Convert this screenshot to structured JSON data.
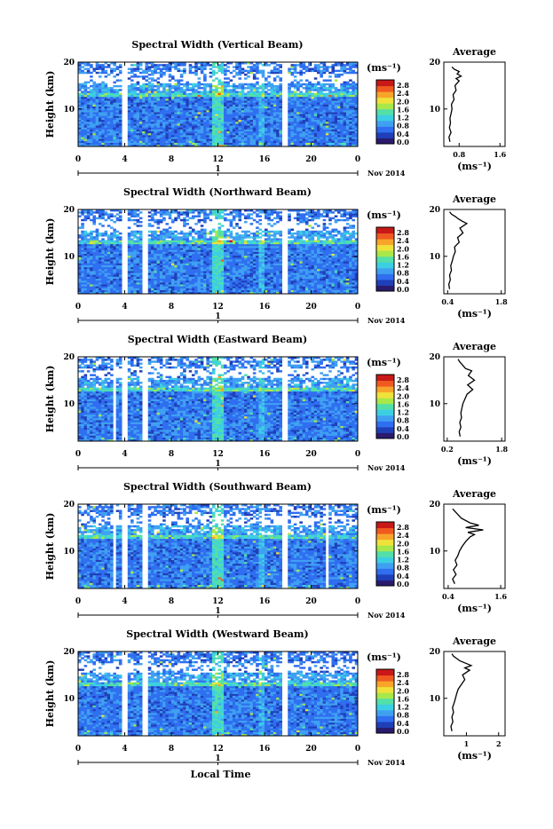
{
  "chart_data": [
    {
      "type": "heatmap",
      "title": "Spectral Width (Vertical Beam)",
      "ylabel": "Height (km)",
      "ylim": [
        2,
        20
      ],
      "yticks": [
        "20",
        "10"
      ],
      "xticks": [
        "0",
        "4",
        "8",
        "12",
        "16",
        "20",
        "0"
      ],
      "day_tick": "1",
      "date_label": "Nov 2014",
      "colorbar": {
        "unit": "(ms⁻¹)",
        "ticks": [
          "2.8",
          "2.4",
          "2.0",
          "1.6",
          "1.2",
          "0.8",
          "0.4",
          "0.0"
        ]
      },
      "average": {
        "title": "Average",
        "xticks": [
          "0.8",
          "1.6"
        ],
        "xlim": [
          0.5,
          1.7
        ],
        "xunit": "(ms⁻¹)",
        "yticks": [
          "20",
          "10"
        ],
        "profile": [
          [
            0.62,
            3
          ],
          [
            0.6,
            4
          ],
          [
            0.64,
            5
          ],
          [
            0.61,
            6
          ],
          [
            0.63,
            7
          ],
          [
            0.62,
            8
          ],
          [
            0.64,
            9
          ],
          [
            0.66,
            10
          ],
          [
            0.65,
            11
          ],
          [
            0.7,
            12
          ],
          [
            0.68,
            13
          ],
          [
            0.74,
            14
          ],
          [
            0.72,
            15
          ],
          [
            0.8,
            16
          ],
          [
            0.74,
            16.5
          ],
          [
            0.84,
            17
          ],
          [
            0.76,
            17.5
          ],
          [
            0.8,
            18
          ],
          [
            0.7,
            18.5
          ],
          [
            0.66,
            19
          ]
        ]
      },
      "gaps": [
        3.8,
        4.3,
        17.6,
        18.0
      ]
    },
    {
      "type": "heatmap",
      "title": "Spectral Width (Northward Beam)",
      "ylabel": "Height (km)",
      "ylim": [
        2,
        20
      ],
      "yticks": [
        "20",
        "10"
      ],
      "xticks": [
        "0",
        "4",
        "8",
        "12",
        "16",
        "20",
        "0"
      ],
      "day_tick": "1",
      "date_label": "Nov 2014",
      "colorbar": {
        "unit": "(ms⁻¹)",
        "ticks": [
          "2.8",
          "2.4",
          "2.0",
          "1.6",
          "1.2",
          "0.8",
          "0.4",
          "0.0"
        ]
      },
      "average": {
        "title": "Average",
        "xticks": [
          "0.4",
          "1.8"
        ],
        "xlim": [
          0.3,
          1.9
        ],
        "xunit": "(ms⁻¹)",
        "yticks": [
          "20",
          "10"
        ],
        "profile": [
          [
            0.45,
            3
          ],
          [
            0.43,
            4
          ],
          [
            0.47,
            5
          ],
          [
            0.45,
            6
          ],
          [
            0.5,
            7
          ],
          [
            0.48,
            8
          ],
          [
            0.52,
            9
          ],
          [
            0.55,
            10
          ],
          [
            0.6,
            11
          ],
          [
            0.58,
            12
          ],
          [
            0.7,
            13
          ],
          [
            0.66,
            14
          ],
          [
            0.8,
            15
          ],
          [
            0.72,
            16
          ],
          [
            0.9,
            17
          ],
          [
            0.78,
            17.5
          ],
          [
            0.68,
            18
          ],
          [
            0.6,
            18.5
          ],
          [
            0.5,
            19
          ],
          [
            0.45,
            19.5
          ]
        ]
      },
      "gaps": [
        3.7,
        4.2,
        5.6,
        5.9,
        17.6,
        18.0
      ]
    },
    {
      "type": "heatmap",
      "title": "Spectral Width (Eastward Beam)",
      "ylabel": "Height (km)",
      "ylim": [
        2,
        20
      ],
      "yticks": [
        "20",
        "10"
      ],
      "xticks": [
        "0",
        "4",
        "8",
        "12",
        "16",
        "20",
        "0"
      ],
      "day_tick": "1",
      "date_label": "Nov 2014",
      "colorbar": {
        "unit": "(ms⁻¹)",
        "ticks": [
          "2.8",
          "2.4",
          "2.0",
          "1.6",
          "1.2",
          "0.8",
          "0.4",
          "0.0"
        ]
      },
      "average": {
        "title": "Average",
        "xticks": [
          "0.2",
          "1.8"
        ],
        "xlim": [
          0.1,
          1.9
        ],
        "xunit": "(ms⁻¹)",
        "yticks": [
          "20",
          "10"
        ],
        "profile": [
          [
            0.58,
            3
          ],
          [
            0.55,
            4
          ],
          [
            0.6,
            5
          ],
          [
            0.57,
            6
          ],
          [
            0.62,
            7
          ],
          [
            0.6,
            8
          ],
          [
            0.63,
            9
          ],
          [
            0.66,
            10
          ],
          [
            0.72,
            11
          ],
          [
            0.78,
            12
          ],
          [
            0.95,
            13
          ],
          [
            0.8,
            14
          ],
          [
            1.0,
            15
          ],
          [
            0.82,
            16
          ],
          [
            0.92,
            17
          ],
          [
            0.74,
            17.5
          ],
          [
            0.68,
            18
          ],
          [
            0.62,
            18.5
          ],
          [
            0.56,
            19
          ],
          [
            0.52,
            19.5
          ]
        ]
      },
      "gaps": [
        2.9,
        3.3,
        3.7,
        4.2,
        5.6,
        5.9,
        17.6,
        18.0
      ]
    },
    {
      "type": "heatmap",
      "title": "Spectral Width (Southward Beam)",
      "ylabel": "Height (km)",
      "ylim": [
        2,
        20
      ],
      "yticks": [
        "20",
        "10"
      ],
      "xticks": [
        "0",
        "4",
        "8",
        "12",
        "16",
        "20",
        "0"
      ],
      "day_tick": "1",
      "date_label": "Nov 2014",
      "colorbar": {
        "unit": "(ms⁻¹)",
        "ticks": [
          "2.8",
          "2.4",
          "2.0",
          "1.6",
          "1.2",
          "0.8",
          "0.4",
          "0.0"
        ]
      },
      "average": {
        "title": "Average",
        "xticks": [
          "0.4",
          "1.6"
        ],
        "xlim": [
          0.3,
          1.7
        ],
        "xunit": "(ms⁻¹)",
        "yticks": [
          "20",
          "10"
        ],
        "profile": [
          [
            0.55,
            3
          ],
          [
            0.5,
            4
          ],
          [
            0.58,
            5
          ],
          [
            0.52,
            6
          ],
          [
            0.6,
            7
          ],
          [
            0.56,
            8
          ],
          [
            0.62,
            9
          ],
          [
            0.66,
            10
          ],
          [
            0.72,
            11
          ],
          [
            0.8,
            12
          ],
          [
            0.9,
            13
          ],
          [
            1.0,
            13.5
          ],
          [
            0.85,
            14
          ],
          [
            1.2,
            14.5
          ],
          [
            0.8,
            15
          ],
          [
            1.1,
            15.5
          ],
          [
            0.9,
            16
          ],
          [
            0.7,
            17
          ],
          [
            0.6,
            18
          ],
          [
            0.5,
            19
          ]
        ]
      },
      "gaps": [
        2.9,
        3.3,
        3.7,
        4.2,
        5.6,
        5.9,
        17.6,
        18.0,
        21.2,
        21.5
      ]
    },
    {
      "type": "heatmap",
      "title": "Spectral Width (Westward Beam)",
      "ylabel": "Height (km)",
      "ylim": [
        2,
        20
      ],
      "yticks": [
        "20",
        "10"
      ],
      "xticks": [
        "0",
        "4",
        "8",
        "12",
        "16",
        "20",
        "0"
      ],
      "day_tick": "1",
      "date_label": "Nov 2014",
      "xlabel": "Local Time",
      "colorbar": {
        "unit": "(ms⁻¹)",
        "ticks": [
          "2.8",
          "2.4",
          "2.0",
          "1.6",
          "1.2",
          "0.8",
          "0.4",
          "0.0"
        ]
      },
      "average": {
        "title": "Average",
        "xticks": [
          "1",
          "2"
        ],
        "xlim": [
          0.3,
          2.2
        ],
        "xunit": "(ms⁻¹)",
        "yticks": [
          "20",
          "10"
        ],
        "profile": [
          [
            0.55,
            3
          ],
          [
            0.52,
            4
          ],
          [
            0.58,
            5
          ],
          [
            0.55,
            6
          ],
          [
            0.6,
            7
          ],
          [
            0.57,
            8
          ],
          [
            0.62,
            9
          ],
          [
            0.66,
            10
          ],
          [
            0.7,
            11
          ],
          [
            0.75,
            12
          ],
          [
            0.85,
            13
          ],
          [
            0.95,
            14
          ],
          [
            0.88,
            15
          ],
          [
            1.1,
            16
          ],
          [
            0.95,
            16.5
          ],
          [
            1.15,
            17
          ],
          [
            0.8,
            18
          ],
          [
            0.7,
            18.5
          ],
          [
            0.6,
            19
          ],
          [
            0.55,
            19.5
          ]
        ]
      },
      "gaps": [
        3.7,
        4.2,
        5.6,
        5.9,
        17.6,
        18.0
      ]
    }
  ],
  "colorscale": [
    "#2a1a6e",
    "#1f3fb8",
    "#2f6ef0",
    "#3fa0f2",
    "#3ccfe4",
    "#53e0a8",
    "#a8e84a",
    "#f0e23a",
    "#f7a52a",
    "#f05a20",
    "#c81818"
  ]
}
